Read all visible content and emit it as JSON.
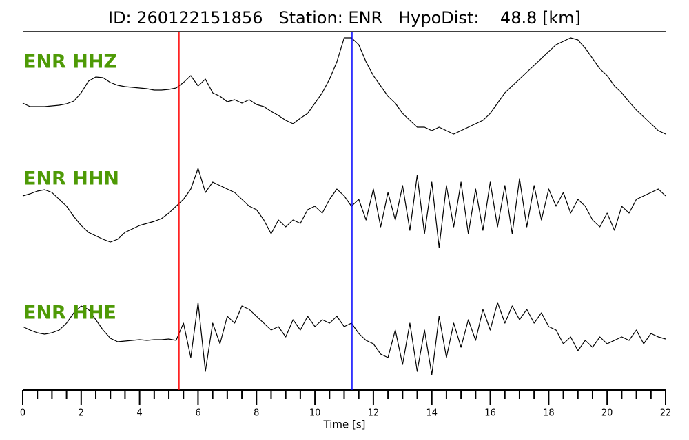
{
  "chart_data": {
    "type": "line",
    "title": "ID: 260122151856   Station: ENR   HypoDist:    48.8 [km]",
    "xlabel": "Time [s]",
    "x": [
      0,
      0.25,
      0.5,
      0.75,
      1,
      1.25,
      1.5,
      1.75,
      2,
      2.25,
      2.5,
      2.75,
      3,
      3.25,
      3.5,
      3.75,
      4,
      4.25,
      4.5,
      4.75,
      5,
      5.25,
      5.5,
      5.75,
      6,
      6.25,
      6.5,
      6.75,
      7,
      7.25,
      7.5,
      7.75,
      8,
      8.25,
      8.5,
      8.75,
      9,
      9.25,
      9.5,
      9.75,
      10,
      10.25,
      10.5,
      10.75,
      11,
      11.25,
      11.5,
      11.75,
      12,
      12.25,
      12.5,
      12.75,
      13,
      13.25,
      13.5,
      13.75,
      14,
      14.25,
      14.5,
      14.75,
      15,
      15.25,
      15.5,
      15.75,
      16,
      16.25,
      16.5,
      16.75,
      17,
      17.25,
      17.5,
      17.75,
      18,
      18.25,
      18.5,
      18.75,
      19,
      19.25,
      19.5,
      19.75,
      20,
      20.25,
      20.5,
      20.75,
      21,
      21.25,
      21.5,
      21.75,
      22
    ],
    "series": [
      {
        "name": "ENR HHZ",
        "color": "#000000",
        "values": [
          -25,
          -30,
          -30,
          -30,
          -29,
          -28,
          -26,
          -22,
          -10,
          7,
          13,
          12,
          5,
          1,
          -1,
          -2,
          -3,
          -4,
          -6,
          -6,
          -5,
          -3,
          5,
          15,
          0,
          10,
          -10,
          -15,
          -23,
          -20,
          -25,
          -20,
          -27,
          -30,
          -37,
          -43,
          -50,
          -55,
          -47,
          -40,
          -25,
          -10,
          10,
          35,
          70,
          70,
          60,
          35,
          15,
          0,
          -15,
          -25,
          -40,
          -50,
          -60,
          -60,
          -65,
          -60,
          -65,
          -70,
          -65,
          -60,
          -55,
          -50,
          -40,
          -25,
          -10,
          0,
          10,
          20,
          30,
          40,
          50,
          60,
          65,
          70,
          67,
          55,
          40,
          25,
          15,
          0,
          -10,
          -23,
          -35,
          -45,
          -55,
          -65,
          -70
        ]
      },
      {
        "name": "ENR HHN",
        "color": "#000000",
        "values": [
          10,
          13,
          17,
          19,
          15,
          5,
          -5,
          -20,
          -33,
          -43,
          -48,
          -53,
          -57,
          -53,
          -43,
          -38,
          -33,
          -30,
          -27,
          -23,
          -15,
          -5,
          5,
          20,
          50,
          15,
          30,
          25,
          20,
          15,
          5,
          -5,
          -10,
          -25,
          -45,
          -25,
          -35,
          -25,
          -30,
          -10,
          -5,
          -15,
          5,
          20,
          10,
          -5,
          5,
          -25,
          20,
          -35,
          15,
          -25,
          25,
          -40,
          40,
          -45,
          30,
          -65,
          25,
          -35,
          30,
          -45,
          20,
          -40,
          30,
          -35,
          25,
          -45,
          35,
          -35,
          25,
          -25,
          20,
          -5,
          15,
          -15,
          5,
          -5,
          -25,
          -35,
          -15,
          -40,
          -5,
          -15,
          5,
          10,
          15,
          20,
          10
        ]
      },
      {
        "name": "ENR HHE",
        "color": "#000000",
        "values": [
          15,
          10,
          6,
          4,
          6,
          10,
          20,
          35,
          45,
          40,
          25,
          10,
          -2,
          -7,
          -6,
          -5,
          -4,
          -5,
          -4,
          -4,
          -3,
          -5,
          20,
          -30,
          50,
          -50,
          20,
          -10,
          30,
          20,
          45,
          40,
          30,
          20,
          10,
          15,
          0,
          25,
          10,
          30,
          15,
          25,
          20,
          30,
          15,
          20,
          5,
          -5,
          -10,
          -25,
          -30,
          10,
          -40,
          20,
          -50,
          10,
          -55,
          30,
          -30,
          20,
          -15,
          25,
          -5,
          40,
          10,
          50,
          20,
          45,
          25,
          40,
          20,
          35,
          15,
          10,
          -10,
          0,
          -20,
          -5,
          -15,
          0,
          -10,
          -5,
          0,
          -5,
          10,
          -10,
          5,
          0,
          -3
        ]
      }
    ],
    "label_color": "#4e9a06",
    "ylim": [
      -80,
      80
    ],
    "xlim": [
      0,
      22
    ],
    "xticks": [
      0,
      2,
      4,
      6,
      8,
      10,
      12,
      14,
      16,
      18,
      20,
      22
    ],
    "xminorticks": [
      0.5,
      1,
      1.5,
      2.5,
      3,
      3.5,
      4.5,
      5,
      5.5,
      6.5,
      7,
      7.5,
      8.5,
      9,
      9.5,
      10.5,
      11,
      11.5,
      12.5,
      13,
      13.5,
      14.5,
      15,
      15.5,
      16.5,
      17,
      17.5,
      18.5,
      19,
      19.5,
      20.5,
      21,
      21.5
    ],
    "picks": [
      {
        "x": 5.35,
        "color": "#ff0000"
      },
      {
        "x": 11.27,
        "color": "#0000ff"
      }
    ]
  }
}
